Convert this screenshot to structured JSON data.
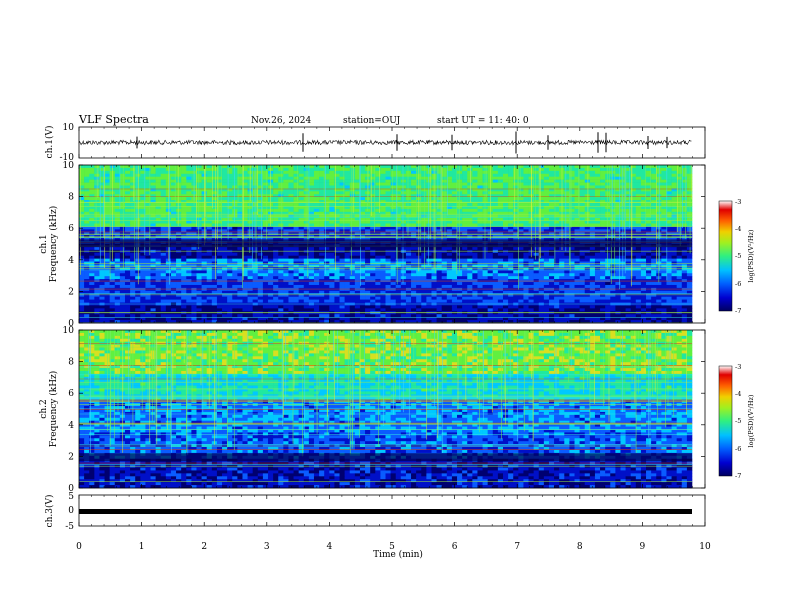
{
  "header": {
    "title": "VLF Spectra",
    "date": "Nov.26, 2024",
    "station": "station=OUJ",
    "start": "start UT =  11: 40: 0"
  },
  "colors": {
    "colormap": [
      "#000070",
      "#0010c8",
      "#0a5cff",
      "#00c8ff",
      "#20e8a0",
      "#60f040",
      "#d8e020",
      "#ff7000",
      "#e00000",
      "#ffffff"
    ]
  },
  "chart_data": [
    {
      "type": "line",
      "panel": "ch1-waveform",
      "ylabel": "ch.1(V)",
      "ylim": [
        -10,
        10
      ],
      "yticks": [
        "10",
        "-10"
      ],
      "x_range": [
        0,
        9.8
      ],
      "series": [
        {
          "values_description_level": 0
        }
      ]
    },
    {
      "type": "heatmap",
      "panel": "ch1-spectrogram",
      "ylabel_line1": "ch.1",
      "ylabel_line2": "Frequency (kHz)",
      "ylim": [
        0,
        10
      ],
      "yticks": [
        "0",
        "2",
        "4",
        "6",
        "8",
        "10"
      ],
      "colorbar": {
        "label": "log(PSD)(V²/Hz)",
        "range": [
          -7,
          -3
        ],
        "ticks": [
          "-3",
          "-4",
          "-5",
          "-6",
          "-7"
        ]
      }
    },
    {
      "type": "heatmap",
      "panel": "ch2-spectrogram",
      "ylabel_line1": "ch.2",
      "ylabel_line2": "Frequency (kHz)",
      "ylim": [
        0,
        10
      ],
      "yticks": [
        "0",
        "2",
        "4",
        "6",
        "8",
        "10"
      ],
      "colorbar": {
        "label": "log(PSD)(V²/Hz)",
        "range": [
          -7,
          -3
        ],
        "ticks": [
          "-3",
          "-4",
          "-5",
          "-6",
          "-7"
        ]
      }
    },
    {
      "type": "line",
      "panel": "ch3-waveform",
      "ylabel": "ch.3(V)",
      "ylim": [
        -5,
        5
      ],
      "yticks": [
        "5",
        "0",
        "-5"
      ],
      "series": [
        {
          "level": -1.5
        }
      ]
    }
  ],
  "xaxis": {
    "label": "Time (min)",
    "range": [
      0,
      10
    ],
    "ticks": [
      "0",
      "1",
      "2",
      "3",
      "4",
      "5",
      "6",
      "7",
      "8",
      "9",
      "10"
    ]
  }
}
